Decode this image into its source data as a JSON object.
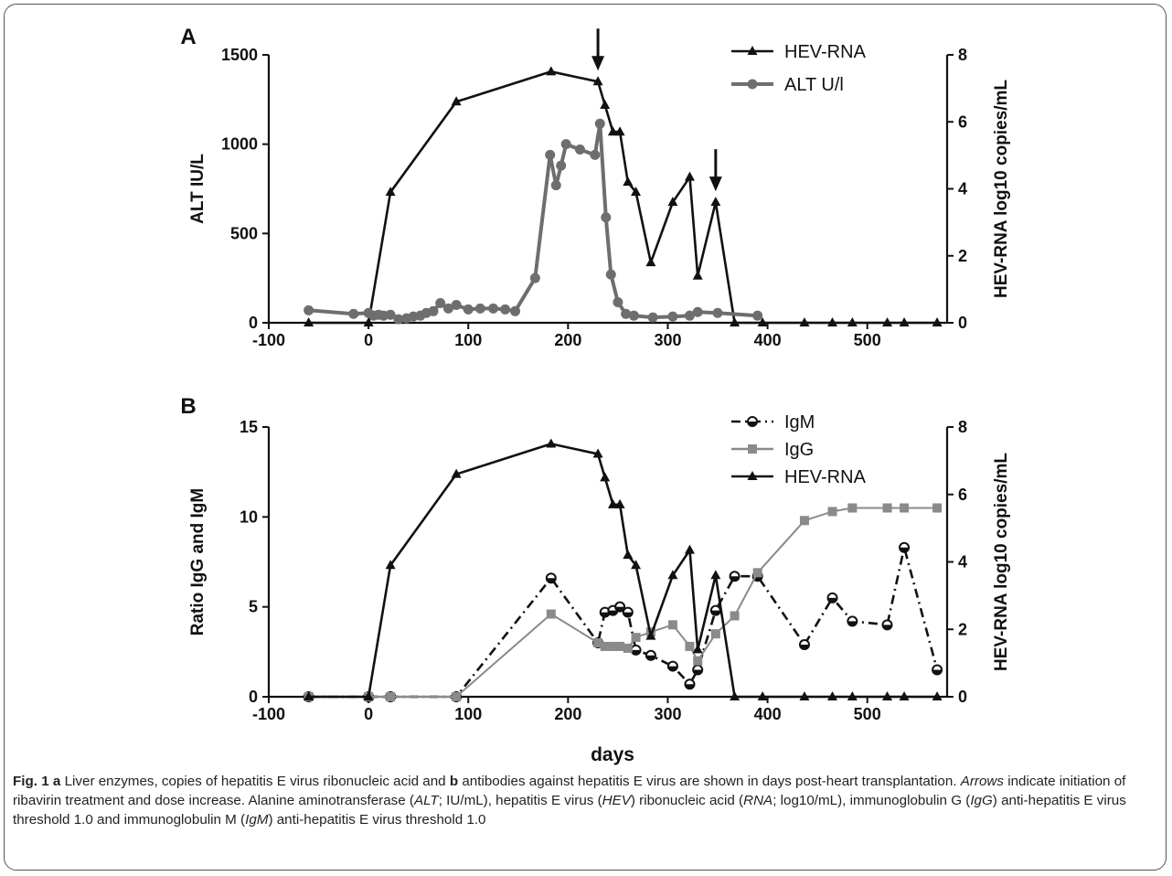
{
  "chart_data": [
    {
      "type": "line",
      "panel_label": "A",
      "xlabel": "",
      "ylabel": "ALT IU/L",
      "ylabel_right": "HEV-RNA log10 copies/mL",
      "xlim": [
        -100,
        580
      ],
      "ylim": [
        0,
        1500
      ],
      "ylim_right": [
        0,
        8
      ],
      "xticks": [
        -100,
        0,
        100,
        200,
        300,
        400,
        500
      ],
      "yticks": [
        0,
        500,
        1000,
        1500
      ],
      "yticks_right": [
        0,
        2,
        4,
        6,
        8
      ],
      "legend_position": "top-right",
      "arrows_x": [
        230,
        348
      ],
      "series": [
        {
          "name": "HEV-RNA",
          "axis": "right",
          "marker": "triangle",
          "color": "#111111",
          "x": [
            -60,
            0,
            22,
            88,
            183,
            230,
            237,
            245,
            252,
            260,
            268,
            283,
            305,
            322,
            330,
            348,
            367,
            395,
            437,
            465,
            485,
            520,
            537,
            570
          ],
          "y": [
            0,
            0,
            3.9,
            6.6,
            7.5,
            7.2,
            6.5,
            5.7,
            5.7,
            4.2,
            3.9,
            1.8,
            3.6,
            4.35,
            1.4,
            3.6,
            0,
            0,
            0,
            0,
            0,
            0,
            0,
            0
          ]
        },
        {
          "name": "ALT U/l",
          "axis": "left",
          "marker": "circle",
          "color": "#6e6e6e",
          "x": [
            -60,
            -15,
            0,
            5,
            10,
            15,
            22,
            30,
            38,
            45,
            52,
            58,
            65,
            72,
            80,
            88,
            100,
            112,
            125,
            137,
            147,
            167,
            182,
            188,
            193,
            198,
            212,
            227,
            232,
            238,
            243,
            250,
            258,
            266,
            285,
            305,
            322,
            330,
            350,
            390
          ],
          "y": [
            70,
            50,
            55,
            40,
            45,
            40,
            45,
            20,
            25,
            35,
            40,
            55,
            65,
            110,
            80,
            100,
            75,
            80,
            80,
            75,
            65,
            250,
            940,
            770,
            880,
            1000,
            970,
            940,
            1115,
            590,
            270,
            115,
            50,
            40,
            30,
            35,
            40,
            60,
            55,
            40
          ]
        }
      ]
    },
    {
      "type": "line",
      "panel_label": "B",
      "xlabel": "days",
      "ylabel": "Ratio IgG and IgM",
      "ylabel_right": "HEV-RNA log10 copies/mL",
      "xlim": [
        -100,
        580
      ],
      "ylim": [
        0,
        15
      ],
      "ylim_right": [
        0,
        8
      ],
      "xticks": [
        -100,
        0,
        100,
        200,
        300,
        400,
        500
      ],
      "yticks": [
        0,
        5,
        10,
        15
      ],
      "yticks_right": [
        0,
        2,
        4,
        6,
        8
      ],
      "legend_position": "top-right",
      "series": [
        {
          "name": "IgM",
          "axis": "left",
          "marker": "half-circle",
          "color": "#111111",
          "dash": "dash-dot",
          "x": [
            -60,
            0,
            22,
            88,
            183,
            230,
            237,
            245,
            252,
            260,
            268,
            283,
            305,
            322,
            330,
            348,
            367,
            390,
            437,
            465,
            485,
            520,
            537,
            570
          ],
          "y": [
            0,
            0,
            0,
            0,
            6.6,
            3.0,
            4.7,
            4.8,
            5.0,
            4.7,
            2.6,
            2.3,
            1.7,
            0.7,
            1.5,
            4.8,
            6.7,
            6.7,
            2.9,
            5.5,
            4.2,
            4.0,
            8.3,
            1.5
          ]
        },
        {
          "name": "IgG",
          "axis": "left",
          "marker": "square",
          "color": "#8a8a8a",
          "x": [
            -60,
            0,
            22,
            88,
            183,
            230,
            237,
            245,
            252,
            260,
            268,
            283,
            305,
            322,
            330,
            348,
            367,
            390,
            437,
            465,
            485,
            520,
            537,
            570
          ],
          "y": [
            0,
            0,
            0,
            0,
            4.6,
            3.0,
            2.8,
            2.8,
            2.8,
            2.7,
            3.3,
            3.6,
            4.0,
            2.8,
            2.0,
            3.5,
            4.5,
            6.9,
            9.8,
            10.3,
            10.5,
            10.5,
            10.5,
            10.5
          ]
        },
        {
          "name": "HEV-RNA",
          "axis": "right",
          "marker": "triangle",
          "color": "#111111",
          "x": [
            -60,
            0,
            22,
            88,
            183,
            230,
            237,
            245,
            252,
            260,
            268,
            283,
            305,
            322,
            330,
            348,
            367,
            395,
            437,
            465,
            485,
            520,
            537,
            570
          ],
          "y": [
            0,
            0,
            3.9,
            6.6,
            7.5,
            7.2,
            6.5,
            5.7,
            5.7,
            4.2,
            3.9,
            1.8,
            3.6,
            4.35,
            1.4,
            3.6,
            0,
            0,
            0,
            0,
            0,
            0,
            0,
            0
          ]
        }
      ]
    }
  ],
  "caption": {
    "fig_label": "Fig. 1",
    "a_label": "a",
    "t1": " Liver enzymes, copies of hepatitis E virus ribonucleic acid and ",
    "b_label": "b",
    "t2": " antibodies against hepatitis E virus are shown in days post-heart transplantation. ",
    "arrows_word": "Arrows",
    "t3": " indicate initiation of ribavirin treatment and dose increase. Alanine aminotransferase (",
    "alt": "ALT",
    "t4": "; IU/mL), hepatitis E virus (",
    "hev": "HEV",
    "t5": ") ribonucleic acid (",
    "rna": "RNA",
    "t6": "; log10/mL), immunoglobulin G (",
    "igg": "IgG",
    "t7": ") anti-hepatitis E virus threshold 1.0 and immunoglobulin M (",
    "igm": "IgM",
    "t8": ") anti-hepatitis E virus threshold 1.0"
  }
}
